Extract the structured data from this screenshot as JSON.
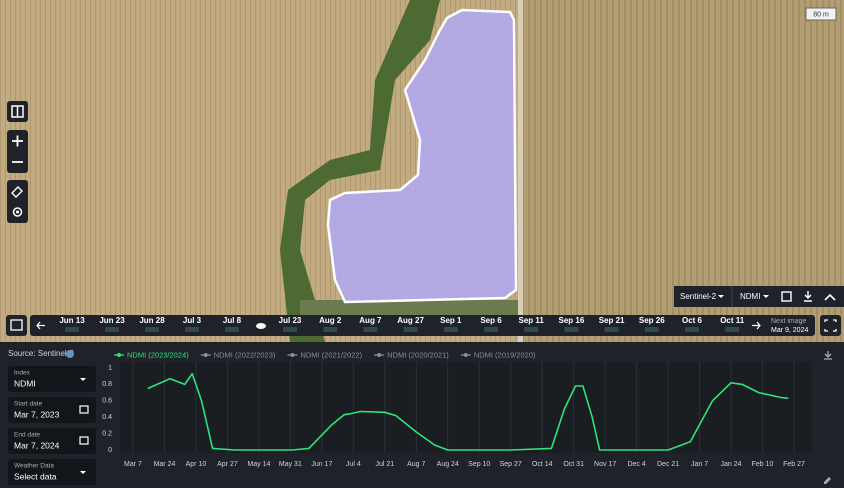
{
  "map": {
    "scale": "80 m"
  },
  "map_controls": {
    "satellite": "Sentinel-2",
    "index": "NDMI"
  },
  "timeline": {
    "dates": [
      "Jun 13",
      "Jun 23",
      "Jun 28",
      "Jul 3",
      "Jul 8",
      "Jul 23",
      "Aug 2",
      "Aug 7",
      "Aug 27",
      "Sep 1",
      "Sep 6",
      "Sep 11",
      "Sep 16",
      "Sep 21",
      "Sep 26",
      "Oct 6",
      "Oct 11"
    ],
    "next_label": "Next image",
    "next_date": "Mar 9, 2024"
  },
  "sidebar": {
    "source": "Source: Sentinel-2",
    "fields": [
      {
        "label": "Index",
        "value": "NDMI"
      },
      {
        "label": "Start date",
        "value": "Mar 7, 2023"
      },
      {
        "label": "End date",
        "value": "Mar 7, 2024"
      },
      {
        "label": "Weather Data",
        "value": "Select data"
      }
    ]
  },
  "chart_data": {
    "type": "line",
    "x": [
      "Mar 15",
      "Mar 27",
      "Apr 4",
      "Apr 8",
      "Apr 13",
      "Apr 19",
      "May 1",
      "Jun 1",
      "Jun 10",
      "Jun 22",
      "Jun 29",
      "Jul 2",
      "Jul 8",
      "Jul 21",
      "Jul 27",
      "Aug 7",
      "Aug 17",
      "Aug 24",
      "Sep 27",
      "Oct 19",
      "Oct 26",
      "Nov 1",
      "Nov 5",
      "Nov 10",
      "Nov 14",
      "Dec 21",
      "Jan 2",
      "Jan 14",
      "Jan 24",
      "Jan 30",
      "Feb 8",
      "Feb 20",
      "Feb 24"
    ],
    "series": [
      {
        "name": "NDMI (2023/2024)",
        "color": "#2ee37a",
        "values": [
          0.75,
          0.87,
          0.8,
          0.93,
          0.6,
          0.02,
          0,
          0,
          0.02,
          0.3,
          0.43,
          0.44,
          0.47,
          0.46,
          0.42,
          0.22,
          0.06,
          0,
          0,
          0.02,
          0.5,
          0.78,
          0.78,
          0.4,
          0,
          0,
          0.1,
          0.6,
          0.82,
          0.8,
          0.7,
          0.64,
          0.63
        ]
      }
    ],
    "hidden_series": [
      {
        "name": "NDMI (2022/2023)",
        "color": "#8a8f96"
      },
      {
        "name": "NDMI (2021/2022)",
        "color": "#8a8f96"
      },
      {
        "name": "NDMI (2020/2021)",
        "color": "#8a8f96"
      },
      {
        "name": "NDMI (2019/2020)",
        "color": "#8a8f96"
      }
    ],
    "xticks": [
      "Mar 7",
      "Mar 24",
      "Apr 10",
      "Apr 27",
      "May 14",
      "May 31",
      "Jun 17",
      "Jul 4",
      "Jul 21",
      "Aug 7",
      "Aug 24",
      "Sep 10",
      "Sep 27",
      "Oct 14",
      "Oct 31",
      "Nov 17",
      "Dec 4",
      "Dec 21",
      "Jan 7",
      "Jan 24",
      "Feb 10",
      "Feb 27"
    ],
    "ylim": [
      0,
      1
    ],
    "yticks": [
      0,
      0.2,
      0.4,
      0.6,
      0.8,
      1
    ],
    "grid": true
  }
}
